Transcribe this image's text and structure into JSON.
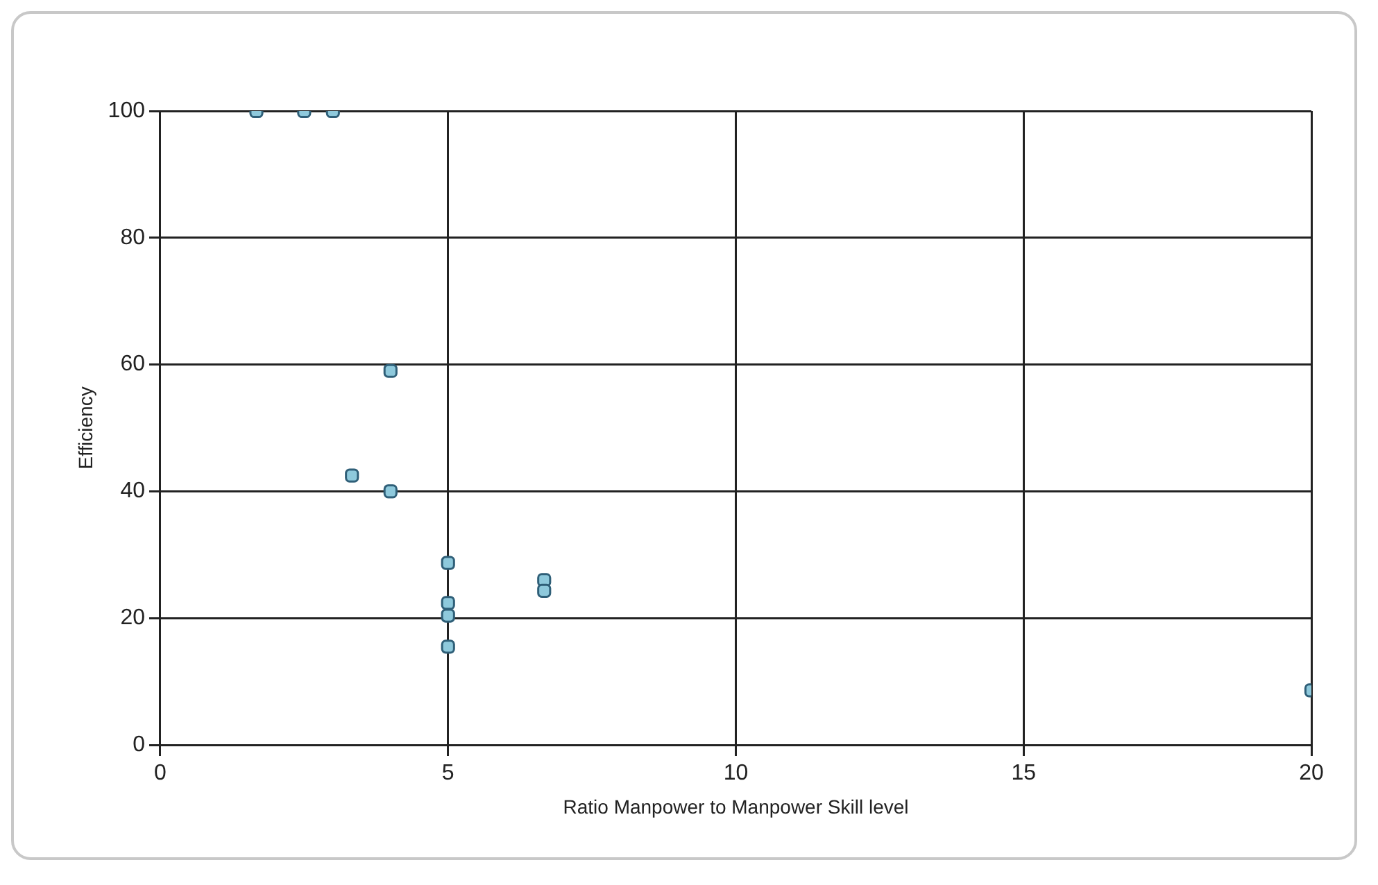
{
  "chart_data": {
    "type": "scatter",
    "xlabel": "Ratio Manpower to Manpower Skill level",
    "ylabel": "Efficiency",
    "series": [
      {
        "color": "#8ec9dc",
        "x": [
          1.67,
          2.5,
          3,
          4,
          3.33,
          4,
          5,
          5,
          5,
          5,
          6.67,
          6.67,
          20
        ],
        "values": [
          100,
          100,
          100,
          59,
          42.5,
          40,
          28.7,
          22.4,
          20.4,
          15.5,
          26,
          24.3,
          8.6
        ]
      }
    ],
    "xlim": [
      0,
      20
    ],
    "xticks": [
      0,
      5,
      10,
      15,
      20
    ],
    "ylim": [
      0,
      100
    ],
    "yticks": [
      0,
      20,
      40,
      60,
      80,
      100
    ],
    "grid": true,
    "legend": false,
    "marker": "square"
  }
}
